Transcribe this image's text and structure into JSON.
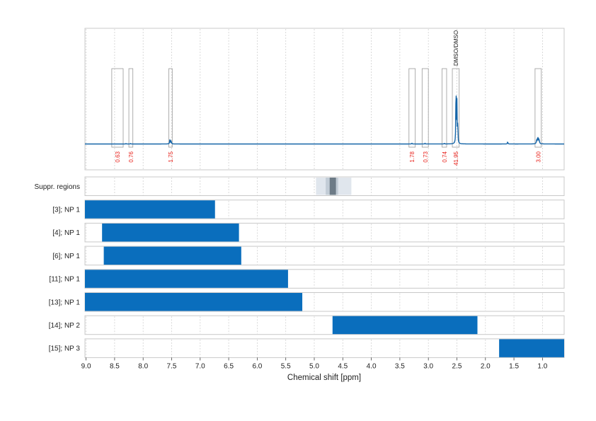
{
  "chart_data": {
    "type": "nmr-spectrum-with-region-bars",
    "xlabel": "Chemical shift [ppm]",
    "xlim": [
      9.02,
      0.62
    ],
    "x_ticks": [
      9.0,
      8.5,
      8.0,
      7.5,
      7.0,
      6.5,
      6.0,
      5.5,
      5.0,
      4.5,
      4.0,
      3.5,
      3.0,
      2.5,
      2.0,
      1.5,
      1.0
    ],
    "x_tick_labels": [
      "9.0",
      "8.5",
      "8.0",
      "7.5",
      "7.0",
      "6.5",
      "6.0",
      "5.5",
      "5.0",
      "4.5",
      "4.0",
      "3.5",
      "3.0",
      "2.5",
      "2.0",
      "1.5",
      "1.0"
    ],
    "spectrum": {
      "color": "#1565a8",
      "peaks": [
        {
          "ppm": 8.3,
          "h": 0.006,
          "w": 0.004
        },
        {
          "ppm": 8.22,
          "h": 0.006,
          "w": 0.004
        },
        {
          "ppm": 7.53,
          "h": 0.06,
          "w": 0.006
        },
        {
          "ppm": 7.51,
          "h": 0.04,
          "w": 0.006
        },
        {
          "ppm": 3.29,
          "h": 0.012,
          "w": 0.005
        },
        {
          "ppm": 3.06,
          "h": 0.01,
          "w": 0.005
        },
        {
          "ppm": 2.72,
          "h": 0.01,
          "w": 0.005
        },
        {
          "ppm": 2.515,
          "h": 0.9,
          "w": 0.004
        },
        {
          "ppm": 2.5,
          "h": 0.55,
          "w": 0.004
        },
        {
          "ppm": 2.485,
          "h": 0.3,
          "w": 0.004
        },
        {
          "ppm": 1.61,
          "h": 0.03,
          "w": 0.005
        },
        {
          "ppm": 1.1,
          "h": 0.05,
          "w": 0.008
        },
        {
          "ppm": 1.08,
          "h": 0.08,
          "w": 0.008
        },
        {
          "ppm": 1.06,
          "h": 0.05,
          "w": 0.008
        }
      ],
      "integrals": [
        {
          "from": 8.55,
          "to": 8.35,
          "label": "0.63"
        },
        {
          "from": 8.25,
          "to": 8.18,
          "label": "0.76"
        },
        {
          "from": 7.55,
          "to": 7.49,
          "label": "1.75"
        },
        {
          "from": 3.34,
          "to": 3.23,
          "label": "1.78"
        },
        {
          "from": 3.11,
          "to": 3.0,
          "label": "0.73"
        },
        {
          "from": 2.76,
          "to": 2.68,
          "label": "0.74"
        },
        {
          "from": 2.58,
          "to": 2.46,
          "label": "41.95"
        },
        {
          "from": 1.13,
          "to": 1.02,
          "label": "3.00"
        }
      ],
      "annotations": [
        {
          "ppm": 2.52,
          "label": "DMSO/DMSO"
        }
      ]
    },
    "suppression": {
      "label": "Suppr. regions",
      "regions": [
        {
          "from": 4.97,
          "to": 4.35,
          "color": "#e0e6ed"
        },
        {
          "from": 4.8,
          "to": 4.58,
          "color": "#c2ccd6"
        },
        {
          "from": 4.73,
          "to": 4.62,
          "color": "#6d7b87"
        }
      ]
    },
    "series": [
      {
        "name": "[3]; NP 1",
        "from": 9.02,
        "to": 6.74
      },
      {
        "name": "[4]; NP 1",
        "from": 8.72,
        "to": 6.32
      },
      {
        "name": "[6]; NP 1",
        "from": 8.69,
        "to": 6.28
      },
      {
        "name": "[11]; NP 1",
        "from": 9.02,
        "to": 5.46
      },
      {
        "name": "[13]; NP 1",
        "from": 9.02,
        "to": 5.21
      },
      {
        "name": "[14]; NP 2",
        "from": 4.68,
        "to": 2.14
      },
      {
        "name": "[15]; NP 3",
        "from": 1.76,
        "to": 0.62
      }
    ],
    "bar_color": "#0a6ebd",
    "grid": true
  }
}
